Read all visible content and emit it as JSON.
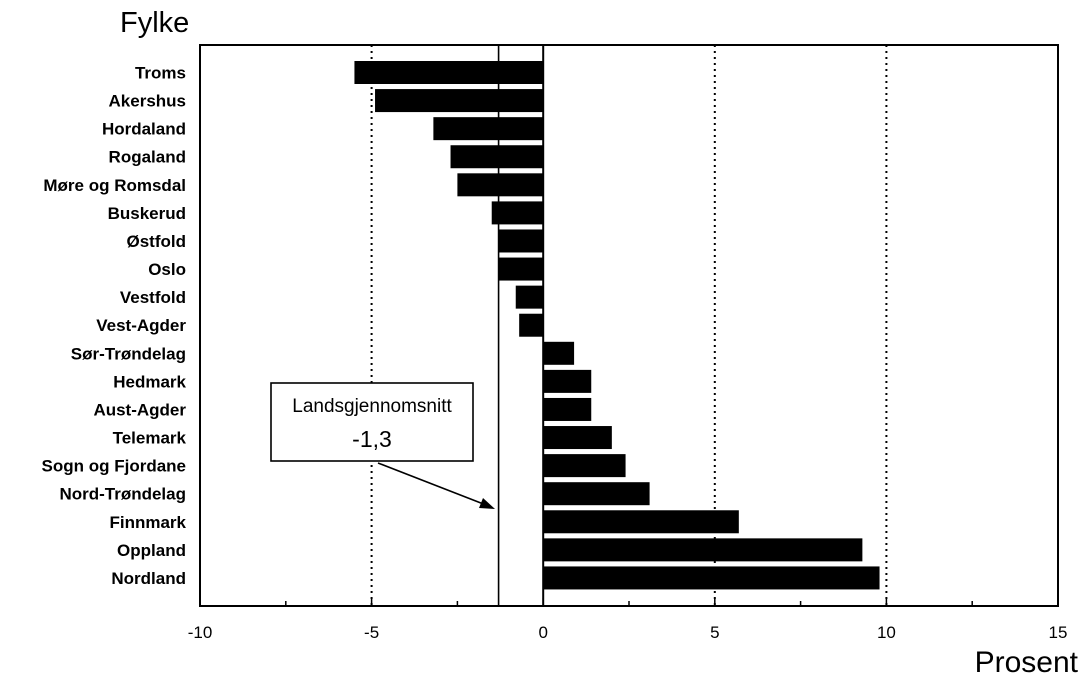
{
  "chart_data": {
    "type": "bar",
    "orientation": "horizontal",
    "categories": [
      "Troms",
      "Akershus",
      "Hordaland",
      "Rogaland",
      "Møre og Romsdal",
      "Buskerud",
      "Østfold",
      "Oslo",
      "Vestfold",
      "Vest-Agder",
      "Sør-Trøndelag",
      "Hedmark",
      "Aust-Agder",
      "Telemark",
      "Sogn og Fjordane",
      "Nord-Trøndelag",
      "Finnmark",
      "Oppland",
      "Nordland"
    ],
    "values": [
      -5.5,
      -4.9,
      -3.2,
      -2.7,
      -2.5,
      -1.5,
      -1.3,
      -1.3,
      -0.8,
      -0.7,
      0.9,
      1.4,
      1.4,
      2.0,
      2.4,
      3.1,
      5.7,
      9.3,
      9.8
    ],
    "ylabel": "Fylke",
    "xlabel": "Prosent",
    "xlim": [
      -10,
      15
    ],
    "xticks": [
      -10,
      -5,
      0,
      5,
      10,
      15
    ],
    "gridlines_x": [
      -5,
      5,
      10
    ],
    "bar_color": "#000000",
    "reference_line": {
      "value": -1.3,
      "label": "Landsgjennomsnitt",
      "value_label": "-1,3"
    }
  }
}
